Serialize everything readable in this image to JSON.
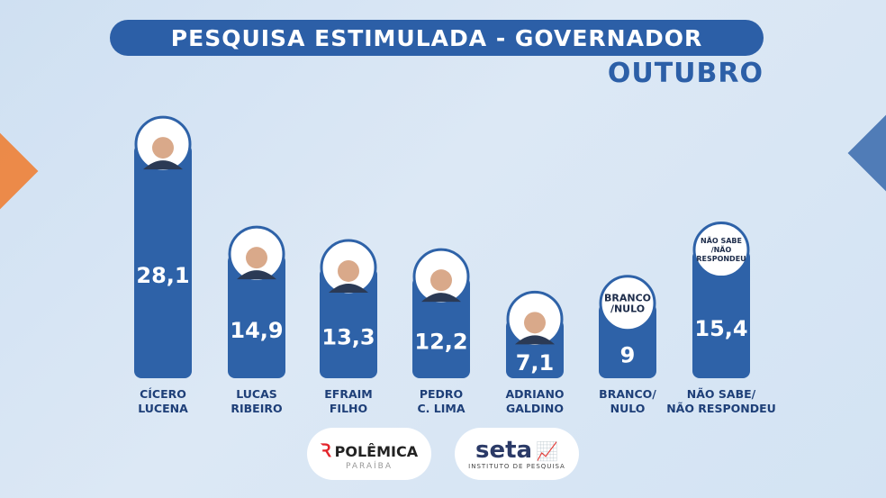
{
  "header": {
    "title": "PESQUISA ESTIMULADA - GOVERNADOR",
    "month": "OUTUBRO"
  },
  "colors": {
    "bar": "#2e62a8",
    "title_bg": "#2c5fa7",
    "accent_orange": "#f07a2a",
    "logo_red": "#e3242b"
  },
  "chart_data": {
    "type": "bar",
    "title": "PESQUISA ESTIMULADA - GOVERNADOR",
    "categories": [
      [
        "CÍCERO",
        "LUCENA"
      ],
      [
        "LUCAS",
        "RIBEIRO"
      ],
      [
        "EFRAIM",
        "FILHO"
      ],
      [
        "PEDRO",
        "C. LIMA"
      ],
      [
        "ADRIANO",
        "GALDINO"
      ],
      [
        "BRANCO/",
        "NULO"
      ],
      [
        "NÃO SABE/",
        "NÃO RESPONDEU"
      ]
    ],
    "values": [
      28.1,
      14.9,
      13.3,
      12.2,
      7.1,
      9,
      15.4
    ],
    "value_labels": [
      "28,1",
      "14,9",
      "13,3",
      "12,2",
      "7,1",
      "9",
      "15,4"
    ],
    "markers": [
      "photo",
      "photo",
      "photo",
      "photo",
      "photo",
      [
        "BRANCO",
        "/NULO"
      ],
      [
        "NÃO SABE",
        "/NÃO",
        "RESPONDEU"
      ]
    ]
  },
  "logos": {
    "polemica": {
      "name": "POLÊMICA",
      "sub": "PARAÍBA"
    },
    "seta": {
      "name": "seta",
      "sub": "INSTITUTO DE PESQUISA"
    }
  }
}
